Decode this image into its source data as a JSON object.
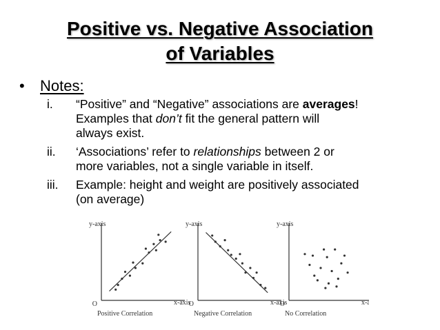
{
  "slide": {
    "title_line1": "Positive vs. Negative Association",
    "title_line2": "of Variables",
    "bullet_symbol": "•",
    "notes_label": "Notes:"
  },
  "notes": [
    {
      "numeral": "i.",
      "lines": [
        [
          "“Positive” and “Negative” associations are ",
          {
            "b": "averages"
          },
          "!"
        ],
        [
          "Examples that ",
          {
            "i": "don’t"
          },
          " fit the general pattern will"
        ],
        [
          "always exist."
        ]
      ]
    },
    {
      "numeral": "ii.",
      "lines": [
        [
          "‘Associations’ refer to ",
          {
            "i": "relationships"
          },
          " between 2 or"
        ],
        [
          "more variables, not a single variable in itself."
        ]
      ]
    },
    {
      "numeral": "iii.",
      "lines": [
        [
          "Example:  height and weight are positively associated"
        ],
        [
          "(on average)"
        ]
      ]
    }
  ],
  "colors": {
    "text": "#000000",
    "chart_ink": "#333333"
  },
  "chart_data": [
    {
      "type": "scatter",
      "title": "Positive Correlation",
      "xlabel": "x-axis",
      "ylabel": "y-axis",
      "origin_label": "O",
      "xlim": [
        0,
        10
      ],
      "ylim": [
        0,
        10
      ],
      "trend_line": [
        [
          1.0,
          1.2
        ],
        [
          8.8,
          8.9
        ]
      ],
      "points": [
        [
          1.8,
          1.4
        ],
        [
          2.1,
          2.0
        ],
        [
          2.6,
          2.8
        ],
        [
          3.0,
          3.7
        ],
        [
          3.6,
          3.2
        ],
        [
          4.0,
          4.9
        ],
        [
          4.3,
          4.2
        ],
        [
          5.2,
          4.8
        ],
        [
          5.6,
          6.7
        ],
        [
          6.0,
          6.2
        ],
        [
          6.6,
          7.3
        ],
        [
          6.9,
          6.5
        ],
        [
          7.4,
          7.8
        ],
        [
          7.2,
          8.5
        ],
        [
          8.1,
          7.6
        ]
      ]
    },
    {
      "type": "scatter",
      "title": "Negative Correlation",
      "xlabel": "x-axis",
      "ylabel": "y-axis",
      "origin_label": "O",
      "xlim": [
        0,
        10
      ],
      "ylim": [
        0,
        10
      ],
      "trend_line": [
        [
          1.0,
          8.8
        ],
        [
          8.8,
          1.0
        ]
      ],
      "points": [
        [
          1.8,
          8.4
        ],
        [
          2.2,
          7.6
        ],
        [
          2.8,
          7.0
        ],
        [
          3.4,
          7.8
        ],
        [
          3.8,
          6.5
        ],
        [
          4.2,
          5.9
        ],
        [
          4.8,
          5.4
        ],
        [
          5.3,
          6.0
        ],
        [
          5.6,
          4.8
        ],
        [
          6.0,
          3.6
        ],
        [
          6.6,
          4.2
        ],
        [
          7.0,
          2.9
        ],
        [
          7.4,
          3.6
        ],
        [
          7.9,
          2.0
        ],
        [
          8.5,
          1.6
        ]
      ]
    },
    {
      "type": "scatter",
      "title": "No Correlation",
      "xlabel": "x-axis",
      "ylabel": "y-axis",
      "origin_label": "O",
      "xlim": [
        0,
        10
      ],
      "ylim": [
        0,
        10
      ],
      "points": [
        [
          2.0,
          6.0
        ],
        [
          2.6,
          4.6
        ],
        [
          3.0,
          5.8
        ],
        [
          3.2,
          3.2
        ],
        [
          3.6,
          2.6
        ],
        [
          4.0,
          4.2
        ],
        [
          4.4,
          6.6
        ],
        [
          4.8,
          5.6
        ],
        [
          5.0,
          2.2
        ],
        [
          5.4,
          3.8
        ],
        [
          5.8,
          6.6
        ],
        [
          6.2,
          2.8
        ],
        [
          6.6,
          4.8
        ],
        [
          7.0,
          5.8
        ],
        [
          7.4,
          3.6
        ],
        [
          6.0,
          1.8
        ],
        [
          4.6,
          1.6
        ]
      ]
    }
  ]
}
